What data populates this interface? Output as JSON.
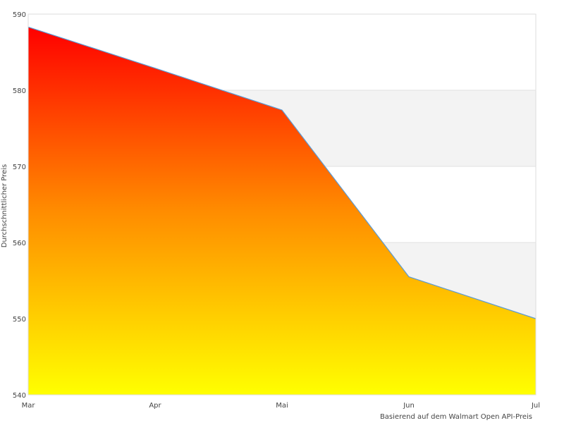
{
  "chart_data": {
    "type": "area",
    "categories": [
      "Mar",
      "Apr",
      "Mai",
      "Jun",
      "Jul"
    ],
    "values": [
      588.3,
      582.9,
      577.4,
      555.5,
      550.0
    ],
    "xlabel": "Basierend auf dem Walmart Open API-Preis",
    "ylabel": "Durchschnittlicher Preis",
    "ylim": [
      540,
      590
    ],
    "yticks": [
      "540",
      "550",
      "560",
      "570",
      "580",
      "590"
    ],
    "grid": "alternating horizontal bands",
    "legend": "none",
    "colors": {
      "line": "#5b9bd5",
      "fill_top": "#ff0000",
      "fill_bottom": "#ffff00",
      "band": "#f3f3f3",
      "border": "#dddddd"
    }
  }
}
